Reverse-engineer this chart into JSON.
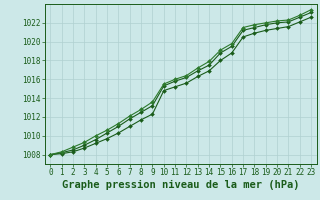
{
  "xlabel": "Graphe pression niveau de la mer (hPa)",
  "xlim": [
    -0.5,
    23.5
  ],
  "ylim": [
    1007.0,
    1024.0
  ],
  "yticks": [
    1008,
    1010,
    1012,
    1014,
    1016,
    1018,
    1020,
    1022
  ],
  "xticks": [
    0,
    1,
    2,
    3,
    4,
    5,
    6,
    7,
    8,
    9,
    10,
    11,
    12,
    13,
    14,
    15,
    16,
    17,
    18,
    19,
    20,
    21,
    22,
    23
  ],
  "xtick_labels": [
    "0",
    "1",
    "2",
    "3",
    "4",
    "5",
    "6",
    "7",
    "8",
    "9",
    "10",
    "11",
    "12",
    "13",
    "14",
    "15",
    "16",
    "17",
    "18",
    "19",
    "20",
    "21",
    "22",
    "23"
  ],
  "bg_color": "#cce8e8",
  "grid_color": "#b0d0d0",
  "line_color_dark": "#1a5c1a",
  "line_color_mid": "#2d7a2d",
  "line1_x": [
    0,
    1,
    2,
    3,
    4,
    5,
    6,
    7,
    8,
    9,
    10,
    11,
    12,
    13,
    14,
    15,
    16,
    17,
    18,
    19,
    20,
    21,
    22,
    23
  ],
  "line1_y": [
    1008.0,
    1008.2,
    1008.5,
    1009.0,
    1009.6,
    1010.3,
    1011.0,
    1011.8,
    1012.5,
    1013.2,
    1015.3,
    1015.8,
    1016.2,
    1016.9,
    1017.5,
    1018.8,
    1019.5,
    1021.2,
    1021.5,
    1021.8,
    1022.0,
    1022.1,
    1022.6,
    1023.1
  ],
  "line2_x": [
    0,
    1,
    2,
    3,
    4,
    5,
    6,
    7,
    8,
    9,
    10,
    11,
    12,
    13,
    14,
    15,
    16,
    17,
    18,
    19,
    20,
    21,
    22,
    23
  ],
  "line2_y": [
    1008.0,
    1008.3,
    1008.8,
    1009.3,
    1010.0,
    1010.6,
    1011.3,
    1012.1,
    1012.8,
    1013.6,
    1015.5,
    1016.0,
    1016.4,
    1017.2,
    1017.9,
    1019.1,
    1019.8,
    1021.5,
    1021.8,
    1022.0,
    1022.2,
    1022.3,
    1022.8,
    1023.4
  ],
  "line3_x": [
    0,
    1,
    2,
    3,
    4,
    5,
    6,
    7,
    8,
    9,
    10,
    11,
    12,
    13,
    14,
    15,
    16,
    17,
    18,
    19,
    20,
    21,
    22,
    23
  ],
  "line3_y": [
    1008.0,
    1008.1,
    1008.3,
    1008.7,
    1009.2,
    1009.7,
    1010.3,
    1011.0,
    1011.7,
    1012.3,
    1014.8,
    1015.2,
    1015.6,
    1016.3,
    1016.9,
    1018.0,
    1018.8,
    1020.5,
    1020.9,
    1021.2,
    1021.4,
    1021.6,
    1022.1,
    1022.6
  ],
  "marker": "D",
  "markersize": 2.0,
  "linewidth": 0.8,
  "tick_fontsize": 5.5,
  "xlabel_fontsize": 7.5
}
